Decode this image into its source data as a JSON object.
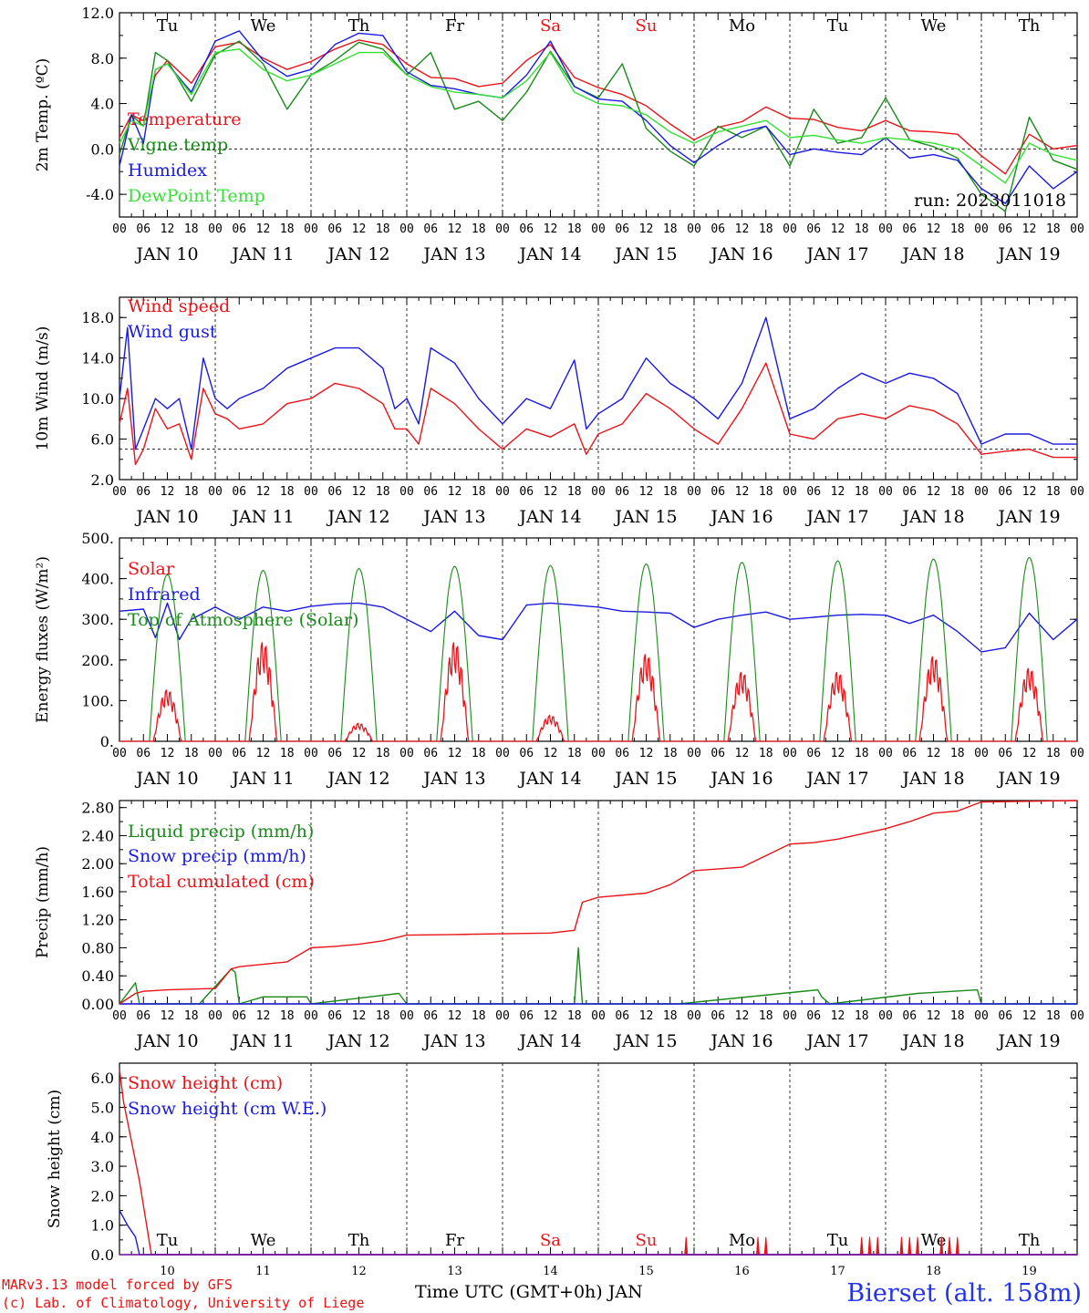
{
  "colors": {
    "red": "#e8141a",
    "green": "#1a8a1a",
    "blue": "#1a1ae0",
    "lightgreen": "#33e033",
    "axis": "#000000",
    "weekend": "#e8141a"
  },
  "time_axis": {
    "hour_ticks": [
      "00",
      "06",
      "12",
      "18"
    ],
    "end_tick": "00",
    "dates": [
      "JAN 10",
      "JAN 11",
      "JAN 12",
      "JAN 13",
      "JAN 14",
      "JAN 15",
      "JAN 16",
      "JAN 17",
      "JAN 18",
      "JAN 19"
    ],
    "weekdays": [
      "Tu",
      "We",
      "Th",
      "Fr",
      "Sa",
      "Su",
      "Mo",
      "Tu",
      "We",
      "Th"
    ],
    "weekend_days": [
      "Sa",
      "Su"
    ],
    "day_numbers": [
      "10",
      "11",
      "12",
      "13",
      "14",
      "15",
      "16",
      "17",
      "18",
      "19"
    ],
    "xlabel": "Time UTC (GMT+0h) JAN"
  },
  "footer": {
    "credit_line1": "MARv3.13 model forced by GFS",
    "credit_line2": "(c) Lab. of Climatology, University of Liege",
    "station": "Bierset (alt. 158m)"
  },
  "chart_data": [
    {
      "type": "line",
      "ylabel": "2m Temp. (ºC)",
      "ylim": [
        -6,
        12
      ],
      "yticks": [
        "12.0",
        "8.0",
        "4.0",
        "0.0",
        "-4.0"
      ],
      "ytick_values": [
        12,
        8,
        4,
        0,
        -4
      ],
      "reference_line": 0,
      "annotation": "run: 2023011018",
      "x_unit": "hours since JAN 10 00 UTC",
      "series": [
        {
          "name": "Temperature",
          "color": "red",
          "x": [
            0,
            3,
            6,
            9,
            12,
            18,
            24,
            30,
            36,
            42,
            48,
            54,
            60,
            66,
            72,
            78,
            84,
            90,
            96,
            102,
            108,
            114,
            120,
            126,
            132,
            138,
            144,
            150,
            156,
            162,
            168,
            174,
            180,
            186,
            192,
            198,
            204,
            210,
            216,
            222,
            228,
            234,
            240
          ],
          "values": [
            1.0,
            3.0,
            2.5,
            6.5,
            7.8,
            5.8,
            9.0,
            9.4,
            8.0,
            7.0,
            7.7,
            8.8,
            9.6,
            9.2,
            7.5,
            6.3,
            6.2,
            5.5,
            5.8,
            7.8,
            9.2,
            6.3,
            5.4,
            4.8,
            3.8,
            2.2,
            0.8,
            1.9,
            2.4,
            3.7,
            2.7,
            2.6,
            1.9,
            1.6,
            2.5,
            1.6,
            1.5,
            1.3,
            -0.6,
            -2.2,
            1.3,
            0.0,
            0.3
          ]
        },
        {
          "name": "Vigne temp",
          "color": "green",
          "x": [
            0,
            3,
            6,
            9,
            12,
            18,
            24,
            30,
            36,
            42,
            48,
            54,
            60,
            66,
            72,
            78,
            84,
            90,
            96,
            102,
            108,
            114,
            120,
            126,
            132,
            138,
            144,
            150,
            156,
            162,
            168,
            174,
            180,
            186,
            192,
            198,
            204,
            210,
            216,
            222,
            228,
            234,
            240
          ],
          "values": [
            -0.5,
            3.0,
            2.0,
            8.5,
            7.8,
            4.2,
            8.3,
            9.5,
            7.5,
            3.5,
            6.5,
            7.8,
            9.4,
            8.8,
            6.5,
            8.5,
            3.5,
            4.2,
            2.5,
            5.0,
            8.6,
            5.5,
            4.5,
            7.5,
            1.8,
            -0.2,
            -1.5,
            2.0,
            1.0,
            2.0,
            -1.5,
            3.5,
            0.5,
            1.0,
            4.5,
            0.8,
            0.2,
            -0.8,
            -4.0,
            -5.5,
            2.8,
            -1.0,
            -1.8
          ]
        },
        {
          "name": "Humidex",
          "color": "blue",
          "x": [
            0,
            3,
            6,
            9,
            12,
            18,
            24,
            30,
            36,
            42,
            48,
            54,
            60,
            66,
            72,
            78,
            84,
            90,
            96,
            102,
            108,
            114,
            120,
            126,
            132,
            138,
            144,
            150,
            156,
            162,
            168,
            174,
            180,
            186,
            192,
            198,
            204,
            210,
            216,
            222,
            228,
            234,
            240
          ],
          "values": [
            -1.5,
            3.0,
            0.5,
            7.0,
            7.5,
            5.0,
            9.5,
            10.4,
            7.8,
            6.4,
            7.0,
            9.2,
            10.2,
            10.0,
            6.8,
            5.6,
            5.3,
            4.8,
            4.5,
            6.5,
            9.5,
            5.5,
            4.4,
            4.2,
            2.5,
            0.3,
            -1.2,
            0.3,
            1.5,
            2.0,
            -0.5,
            0.0,
            -0.3,
            -0.5,
            1.0,
            -0.8,
            -0.5,
            -1.0,
            -3.5,
            -4.8,
            -1.5,
            -3.5,
            -2.0
          ]
        },
        {
          "name": "DewPoint Temp",
          "color": "lightgreen",
          "x": [
            0,
            3,
            6,
            9,
            12,
            18,
            24,
            30,
            36,
            42,
            48,
            54,
            60,
            66,
            72,
            78,
            84,
            90,
            96,
            102,
            108,
            114,
            120,
            126,
            132,
            138,
            144,
            150,
            156,
            162,
            168,
            174,
            180,
            186,
            192,
            198,
            204,
            210,
            216,
            222,
            228,
            234,
            240
          ],
          "values": [
            0.5,
            2.5,
            2.0,
            7.0,
            7.5,
            4.8,
            8.5,
            8.8,
            7.0,
            6.0,
            6.5,
            7.5,
            8.5,
            8.5,
            6.5,
            5.5,
            5.0,
            4.8,
            4.5,
            6.0,
            8.5,
            5.0,
            4.0,
            3.8,
            3.0,
            1.5,
            0.5,
            1.5,
            2.0,
            2.5,
            1.0,
            1.2,
            0.8,
            0.5,
            1.0,
            0.8,
            0.5,
            0.0,
            -1.5,
            -3.0,
            0.5,
            -0.5,
            -1.0
          ]
        }
      ]
    },
    {
      "type": "line",
      "ylabel": "10m Wind (m/s)",
      "ylim": [
        2,
        20
      ],
      "yticks": [
        "18.0",
        "14.0",
        "10.0",
        "6.0",
        "2.0"
      ],
      "ytick_values": [
        18,
        14,
        10,
        6,
        2
      ],
      "reference_line": 5,
      "x_unit": "hours since JAN 10 00 UTC",
      "series": [
        {
          "name": "Wind speed",
          "color": "red",
          "x": [
            0,
            2,
            4,
            6,
            9,
            12,
            15,
            18,
            21,
            24,
            27,
            30,
            36,
            42,
            48,
            54,
            60,
            66,
            69,
            72,
            75,
            78,
            84,
            90,
            96,
            102,
            108,
            114,
            117,
            120,
            126,
            132,
            138,
            144,
            150,
            156,
            162,
            168,
            174,
            180,
            186,
            192,
            198,
            204,
            210,
            216,
            222,
            228,
            234,
            240
          ],
          "values": [
            7.5,
            11,
            3.5,
            5,
            9,
            7,
            7.5,
            4,
            11,
            8.5,
            8,
            7,
            7.5,
            9.5,
            10,
            11.5,
            11,
            9.5,
            7,
            7,
            5.5,
            11,
            9.5,
            7,
            5,
            7,
            6.2,
            7.5,
            4.5,
            6.5,
            7.5,
            10.5,
            9,
            7,
            5.5,
            9,
            13.5,
            6.5,
            6,
            8,
            8.5,
            8,
            9.3,
            8.8,
            7.5,
            4.5,
            4.8,
            5,
            4.2,
            4.2
          ]
        },
        {
          "name": "Wind gust",
          "color": "blue",
          "x": [
            0,
            2,
            4,
            6,
            9,
            12,
            15,
            18,
            21,
            24,
            27,
            30,
            36,
            42,
            48,
            54,
            60,
            66,
            69,
            72,
            75,
            78,
            84,
            90,
            96,
            102,
            108,
            114,
            117,
            120,
            126,
            132,
            138,
            144,
            150,
            156,
            162,
            168,
            174,
            180,
            186,
            192,
            198,
            204,
            210,
            216,
            222,
            228,
            234,
            240
          ],
          "values": [
            10,
            17,
            5,
            7,
            10,
            9,
            10,
            5,
            14,
            10,
            9,
            10,
            11,
            13,
            14,
            15,
            15,
            13,
            9,
            10,
            7.5,
            15,
            13.5,
            10,
            7.5,
            10,
            9,
            13.8,
            7,
            8.5,
            10,
            14,
            11.5,
            10,
            8,
            11.5,
            18,
            8,
            9,
            11,
            12.5,
            11.5,
            12.5,
            12,
            10.5,
            5.5,
            6.5,
            6.5,
            5.5,
            5.5
          ]
        }
      ]
    },
    {
      "type": "line",
      "ylabel": "Energy fluxes (W/m²)",
      "ylim": [
        0,
        500
      ],
      "yticks": [
        "500.",
        "400.",
        "300.",
        "200.",
        "100.",
        "0."
      ],
      "ytick_values": [
        500,
        400,
        300,
        200,
        100,
        0
      ],
      "x_unit": "hours since JAN 10 00 UTC",
      "daily_solar_peaks": [
        130,
        250,
        45,
        250,
        65,
        220,
        175,
        175,
        215,
        185
      ],
      "daily_toa_peaks": [
        410,
        420,
        425,
        430,
        432,
        436,
        440,
        444,
        448,
        452
      ],
      "series": [
        {
          "name": "Solar",
          "color": "red"
        },
        {
          "name": "Infrared",
          "color": "blue",
          "x": [
            0,
            6,
            9,
            12,
            15,
            18,
            24,
            30,
            36,
            42,
            48,
            54,
            60,
            66,
            72,
            78,
            84,
            90,
            96,
            102,
            108,
            114,
            120,
            126,
            132,
            138,
            144,
            150,
            156,
            162,
            168,
            174,
            180,
            186,
            192,
            198,
            204,
            210,
            216,
            222,
            228,
            234,
            240
          ],
          "values": [
            320,
            325,
            255,
            340,
            250,
            300,
            330,
            300,
            330,
            320,
            332,
            338,
            340,
            330,
            300,
            270,
            320,
            260,
            250,
            335,
            340,
            335,
            330,
            320,
            318,
            315,
            280,
            300,
            310,
            318,
            300,
            305,
            310,
            312,
            310,
            290,
            310,
            270,
            220,
            230,
            315,
            250,
            300
          ]
        },
        {
          "name": "Top of Atmosphere (Solar)",
          "color": "green"
        }
      ]
    },
    {
      "type": "line",
      "ylabel": "Precip (mm/h)",
      "ylim": [
        0,
        2.9
      ],
      "yticks": [
        "2.80",
        "2.40",
        "2.00",
        "1.60",
        "1.20",
        "0.80",
        "0.40",
        "0.00"
      ],
      "ytick_values": [
        2.8,
        2.4,
        2.0,
        1.6,
        1.2,
        0.8,
        0.4,
        0.0
      ],
      "x_unit": "hours since JAN 10 00 UTC",
      "series": [
        {
          "name": "Liquid precip (mm/h)",
          "color": "green",
          "x": [
            0,
            4,
            5,
            6,
            20,
            28,
            29,
            30,
            36,
            47,
            48,
            70,
            72,
            114,
            115,
            116,
            140,
            175,
            176,
            178,
            200,
            215,
            216,
            240
          ],
          "values": [
            0,
            0.3,
            0,
            0,
            0,
            0.5,
            0.45,
            0,
            0.1,
            0.1,
            0,
            0.15,
            0,
            0,
            0.8,
            0,
            0,
            0.2,
            0.1,
            0,
            0.15,
            0.2,
            0,
            0
          ]
        },
        {
          "name": "Snow precip (mm/h)",
          "color": "blue",
          "x": [
            0,
            240
          ],
          "values": [
            0,
            0
          ]
        },
        {
          "name": "Total cumulated (cm)",
          "color": "red",
          "x": [
            0,
            4,
            6,
            12,
            24,
            28,
            30,
            42,
            48,
            54,
            60,
            66,
            72,
            84,
            96,
            108,
            114,
            116,
            120,
            132,
            138,
            144,
            156,
            168,
            174,
            180,
            192,
            198,
            204,
            210,
            216,
            228,
            240
          ],
          "values": [
            0,
            0.15,
            0.18,
            0.2,
            0.22,
            0.5,
            0.53,
            0.6,
            0.8,
            0.82,
            0.85,
            0.9,
            0.98,
            0.99,
            1.0,
            1.01,
            1.05,
            1.45,
            1.52,
            1.58,
            1.7,
            1.9,
            1.95,
            2.28,
            2.3,
            2.35,
            2.5,
            2.6,
            2.72,
            2.75,
            2.88,
            2.89,
            2.9
          ]
        }
      ]
    },
    {
      "type": "line",
      "ylabel": "Snow height (cm)",
      "ylim": [
        0,
        6.5
      ],
      "yticks": [
        "6.0",
        "5.0",
        "4.0",
        "3.0",
        "2.0",
        "1.0",
        "0.0"
      ],
      "ytick_values": [
        6,
        5,
        4,
        3,
        2,
        1,
        0
      ],
      "x_unit": "hours since JAN 10 00 UTC",
      "spikes_hours": [
        142,
        160,
        162,
        186,
        188,
        190,
        196,
        198,
        200,
        206,
        208,
        210
      ],
      "spike_height": 0.6,
      "series": [
        {
          "name": "Snow height (cm)",
          "color": "red",
          "x": [
            0,
            1,
            5,
            8,
            240
          ],
          "values": [
            6.3,
            5.2,
            2.5,
            0,
            0
          ]
        },
        {
          "name": "Snow height (cm W.E.)",
          "color": "blue",
          "x": [
            0,
            2,
            4,
            5,
            240
          ],
          "values": [
            1.5,
            1.0,
            0.6,
            0,
            0
          ]
        }
      ]
    }
  ]
}
